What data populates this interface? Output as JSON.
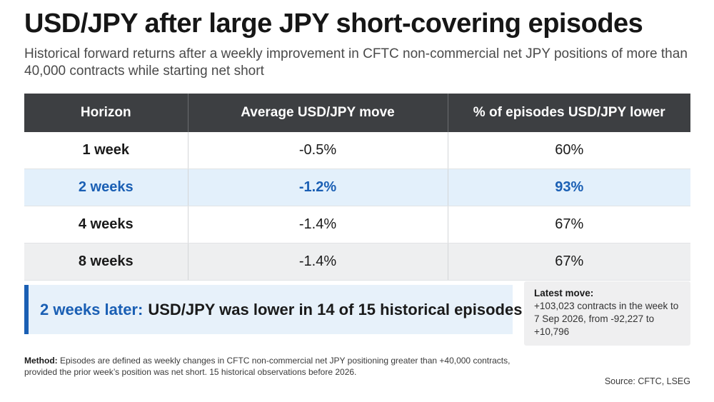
{
  "title": "USD/JPY after large JPY short-covering episodes",
  "subtitle": "Historical forward returns after a weekly improvement in CFTC non-commercial net JPY positions of more than 40,000 contracts while starting net short",
  "chart_data": {
    "type": "table",
    "columns": [
      "Horizon",
      "Average USD/JPY move",
      "% of episodes USD/JPY lower"
    ],
    "rows": [
      [
        "1 week",
        "-0.5%",
        "60%"
      ],
      [
        "2 weeks",
        "-1.2%",
        "93%"
      ],
      [
        "4 weeks",
        "-1.4%",
        "67%"
      ],
      [
        "8 weeks",
        "-1.4%",
        "67%"
      ]
    ],
    "highlighted_row": "2 weeks"
  },
  "callout": {
    "lead": "2 weeks later:",
    "text": "USD/JPY was lower in 14 of 15 historical episodes"
  },
  "latest": {
    "heading": "Latest move:",
    "body": "+103,023 contracts in the week to 7 Sep 2026, from -92,227 to +10,796"
  },
  "method": {
    "label": "Method:",
    "text": "Episodes are defined as weekly changes in CFTC non-commercial net JPY positioning greater than +40,000 contracts, provided the prior week’s position was net short. 15 historical observations before 2026."
  },
  "source": "Source: CFTC, LSEG",
  "colors": {
    "header_bg": "#3d3f42",
    "highlight_text": "#1a5fb4",
    "highlight_bg": "#e3f0fb"
  }
}
